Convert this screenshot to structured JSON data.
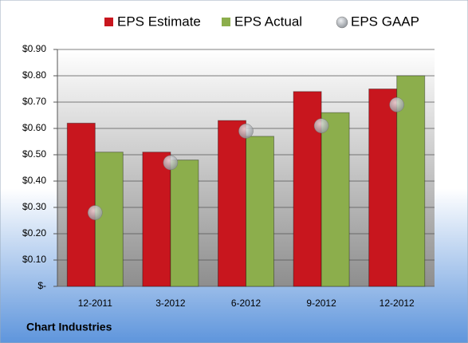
{
  "chart_data": {
    "type": "bar",
    "categories": [
      "12-2011",
      "3-2012",
      "6-2012",
      "9-2012",
      "12-2012"
    ],
    "series": [
      {
        "name": "EPS Estimate",
        "color": "#c8161e",
        "values": [
          0.62,
          0.51,
          0.63,
          0.74,
          0.75
        ]
      },
      {
        "name": "EPS Actual",
        "color": "#8cae4c",
        "values": [
          0.51,
          0.48,
          0.57,
          0.66,
          0.8
        ]
      },
      {
        "name": "EPS GAAP",
        "color": "#a9adb3",
        "type": "scatter",
        "values": [
          0.28,
          0.47,
          0.59,
          0.61,
          0.69
        ]
      }
    ],
    "ylim": [
      0,
      0.9
    ],
    "yticks": [
      {
        "value": 0,
        "label": "$-"
      },
      {
        "value": 0.1,
        "label": "$0.10"
      },
      {
        "value": 0.2,
        "label": "$0.20"
      },
      {
        "value": 0.3,
        "label": "$0.30"
      },
      {
        "value": 0.4,
        "label": "$0.40"
      },
      {
        "value": 0.5,
        "label": "$0.50"
      },
      {
        "value": 0.6,
        "label": "$0.60"
      },
      {
        "value": 0.7,
        "label": "$0.70"
      },
      {
        "value": 0.8,
        "label": "$0.80"
      },
      {
        "value": 0.9,
        "label": "$0.90"
      }
    ],
    "grid": true,
    "footnote": "Chart Industries"
  }
}
